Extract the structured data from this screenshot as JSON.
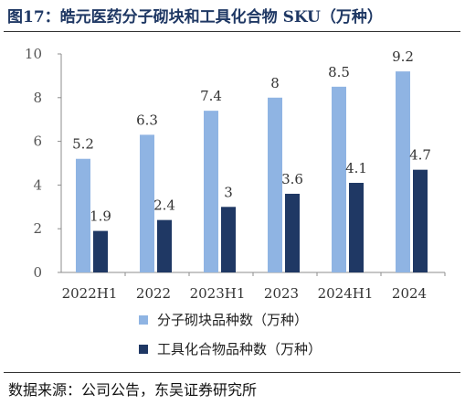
{
  "title": "图17：皓元医药分子砌块和工具化合物 SKU（万种）",
  "source": "数据来源：公司公告，东吴证券研究所",
  "colors": {
    "series1": "#8fb4e3",
    "series2": "#1f3864",
    "title": "#1f3864"
  },
  "chart_data": {
    "type": "bar",
    "categories": [
      "2022H1",
      "2022",
      "2023H1",
      "2023",
      "2024H1",
      "2024"
    ],
    "series": [
      {
        "name": "分子砌块品种数（万种）",
        "values": [
          5.2,
          6.3,
          7.4,
          8,
          8.5,
          9.2
        ],
        "labels": [
          "5.2",
          "6.3",
          "7.4",
          "8",
          "8.5",
          "9.2"
        ]
      },
      {
        "name": "工具化合物品种数（万种）",
        "values": [
          1.9,
          2.4,
          3,
          3.6,
          4.1,
          4.7
        ],
        "labels": [
          "1.9",
          "2.4",
          "3",
          "3.6",
          "4.1",
          "4.7"
        ]
      }
    ],
    "yticks": [
      "0",
      "2",
      "4",
      "6",
      "8",
      "10"
    ],
    "ylim": [
      0,
      10
    ],
    "xlabel": "",
    "ylabel": "",
    "grid": false,
    "legend": "bottom"
  }
}
